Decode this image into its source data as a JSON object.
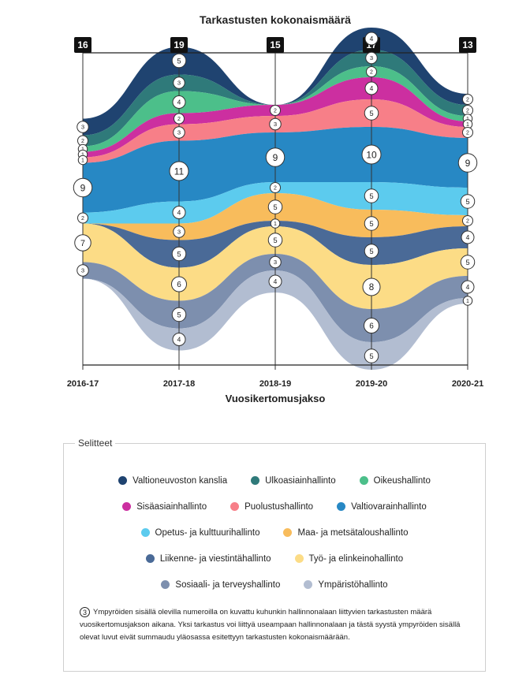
{
  "chart_data": {
    "type": "area",
    "title": "Tarkastusten kokonaismäärä",
    "xlabel": "Vuosikertomusjakso",
    "categories": [
      "2016-17",
      "2017-18",
      "2018-19",
      "2019-20",
      "2020-21"
    ],
    "totals": [
      16,
      19,
      15,
      17,
      13
    ],
    "series": [
      {
        "name": "Valtioneuvoston kanslia",
        "color": "#1f4370",
        "values": [
          3,
          5,
          0,
          4,
          2
        ]
      },
      {
        "name": "Ulkoasiainhallinto",
        "color": "#2f7a7a",
        "values": [
          2,
          3,
          0,
          3,
          2
        ]
      },
      {
        "name": "Oikeushallinto",
        "color": "#4cbf8a",
        "values": [
          1,
          4,
          0,
          2,
          1
        ]
      },
      {
        "name": "Sisäasiainhallinto",
        "color": "#cc2fa0",
        "values": [
          1,
          2,
          2,
          4,
          1
        ]
      },
      {
        "name": "Puolustushallinto",
        "color": "#f77f88",
        "values": [
          1,
          3,
          3,
          5,
          2
        ]
      },
      {
        "name": "Valtiovarainhallinto",
        "color": "#2788c4",
        "values": [
          9,
          11,
          9,
          10,
          9
        ]
      },
      {
        "name": "Opetus- ja kulttuurihallinto",
        "color": "#5ccbee",
        "values": [
          2,
          4,
          2,
          5,
          5
        ]
      },
      {
        "name": "Maa- ja metsätaloushallinto",
        "color": "#f8bc5c",
        "values": [
          0,
          3,
          5,
          5,
          2
        ]
      },
      {
        "name": "Liikenne- ja viestintähallinto",
        "color": "#4a6a97",
        "values": [
          0,
          5,
          1,
          5,
          4
        ]
      },
      {
        "name": "Työ- ja elinkeinohallinto",
        "color": "#fcdc86",
        "values": [
          7,
          6,
          5,
          8,
          5
        ]
      },
      {
        "name": "Sosiaali- ja terveyshallinto",
        "color": "#7d8fae",
        "values": [
          3,
          5,
          3,
          6,
          4
        ]
      },
      {
        "name": "Ympäristöhallinto",
        "color": "#b2bdd1",
        "values": [
          0,
          4,
          4,
          5,
          1
        ]
      }
    ],
    "legend_position": "bottom",
    "grid": false
  },
  "legend": {
    "title": "Selitteet",
    "note_number": "3",
    "note": "Ympyröiden sisällä olevilla numeroilla on kuvattu kuhunkin hallinnonalaan liittyvien tarkastusten määrä vuosikertomusjakson aikana. Yksi tarkastus voi liittyä useampaan hallinnonalaan ja tästä syystä ympyröiden sisällä olevat luvut eivät summaudu yläosassa esitettyyn tarkastusten kokonaismäärään."
  }
}
